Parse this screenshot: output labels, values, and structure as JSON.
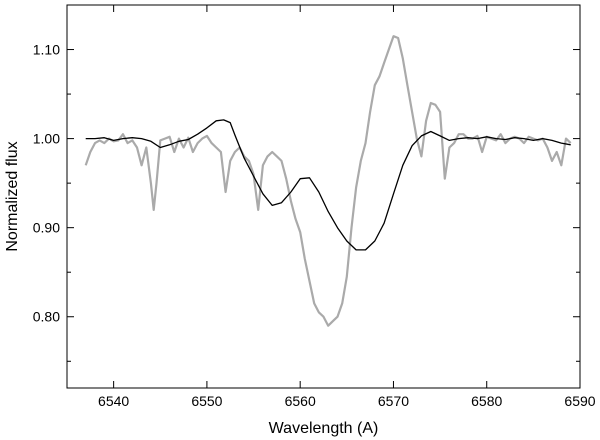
{
  "chart_data": {
    "type": "line",
    "title": "",
    "xlabel": "Wavelength (A)",
    "ylabel": "Normalized flux",
    "xlim": [
      6535,
      6590
    ],
    "ylim": [
      0.72,
      1.15
    ],
    "x_ticks": [
      6540,
      6550,
      6560,
      6570,
      6580,
      6590
    ],
    "x_tick_labels": [
      "6540",
      "6550",
      "6560",
      "6570",
      "6580",
      "6590"
    ],
    "y_ticks": [
      0.8,
      0.9,
      1.0,
      1.1
    ],
    "y_tick_labels": [
      "0.80",
      "0.90",
      "1.00",
      "1.10"
    ],
    "y_minor_ticks": [
      0.75,
      0.85,
      0.95,
      1.05
    ],
    "grid": false,
    "legend": "none",
    "series": [
      {
        "color": "#000000",
        "x": [
          6537.0,
          6538.0,
          6539.0,
          6540.0,
          6541.0,
          6542.0,
          6543.0,
          6544.0,
          6545.0,
          6546.0,
          6547.0,
          6548.0,
          6549.0,
          6550.0,
          6551.0,
          6551.8,
          6552.5,
          6553.0,
          6554.0,
          6555.0,
          6556.0,
          6557.0,
          6558.0,
          6559.0,
          6560.0,
          6561.0,
          6562.0,
          6563.0,
          6564.0,
          6565.0,
          6566.0,
          6567.0,
          6568.0,
          6569.0,
          6570.0,
          6571.0,
          6572.0,
          6573.0,
          6574.0,
          6575.0,
          6576.0,
          6577.0,
          6578.0,
          6579.0,
          6580.0,
          6581.0,
          6582.0,
          6583.0,
          6584.0,
          6585.0,
          6586.0,
          6587.0,
          6588.0,
          6589.0
        ],
        "y": [
          1.0,
          1.0,
          1.001,
          0.998,
          1.0,
          1.001,
          1.0,
          0.997,
          0.99,
          0.993,
          0.997,
          0.999,
          1.005,
          1.012,
          1.02,
          1.021,
          1.018,
          1.004,
          0.978,
          0.958,
          0.938,
          0.925,
          0.928,
          0.94,
          0.955,
          0.956,
          0.94,
          0.918,
          0.9,
          0.885,
          0.875,
          0.875,
          0.885,
          0.905,
          0.938,
          0.97,
          0.992,
          1.003,
          1.008,
          1.003,
          0.998,
          1.0,
          1.001,
          1.0,
          1.002,
          1.0,
          0.999,
          1.001,
          1.0,
          0.998,
          1.0,
          0.998,
          0.995,
          0.993
        ]
      },
      {
        "color": "#aaaaaa",
        "x": [
          6537.0,
          6537.5,
          6538.0,
          6538.5,
          6539.0,
          6539.5,
          6540.0,
          6540.5,
          6541.0,
          6541.5,
          6542.0,
          6542.5,
          6543.0,
          6543.5,
          6544.0,
          6544.3,
          6544.6,
          6545.0,
          6545.5,
          6546.0,
          6546.5,
          6547.0,
          6547.5,
          6548.0,
          6548.5,
          6549.0,
          6549.5,
          6550.0,
          6550.5,
          6551.0,
          6551.5,
          6552.0,
          6552.5,
          6553.0,
          6553.5,
          6554.0,
          6554.5,
          6555.0,
          6555.5,
          6556.0,
          6556.5,
          6557.0,
          6557.5,
          6558.0,
          6558.5,
          6559.0,
          6559.5,
          6560.0,
          6560.5,
          6561.0,
          6561.5,
          6562.0,
          6562.5,
          6563.0,
          6563.5,
          6564.0,
          6564.5,
          6565.0,
          6565.5,
          6566.0,
          6566.5,
          6567.0,
          6567.5,
          6568.0,
          6568.5,
          6569.0,
          6569.5,
          6570.0,
          6570.5,
          6571.0,
          6571.5,
          6572.0,
          6572.5,
          6573.0,
          6573.5,
          6574.0,
          6574.5,
          6575.0,
          6575.5,
          6576.0,
          6576.5,
          6577.0,
          6577.5,
          6578.0,
          6578.5,
          6579.0,
          6579.5,
          6580.0,
          6580.5,
          6581.0,
          6581.5,
          6582.0,
          6582.5,
          6583.0,
          6583.5,
          6584.0,
          6584.5,
          6585.0,
          6585.5,
          6586.0,
          6586.5,
          6587.0,
          6587.5,
          6588.0,
          6588.5,
          6589.0
        ],
        "y": [
          0.97,
          0.985,
          0.995,
          0.998,
          0.995,
          1.0,
          0.997,
          0.998,
          1.005,
          0.995,
          0.998,
          0.99,
          0.97,
          0.99,
          0.95,
          0.92,
          0.95,
          0.998,
          1.0,
          1.002,
          0.985,
          1.0,
          0.99,
          1.001,
          0.985,
          0.995,
          1.0,
          1.003,
          0.995,
          0.99,
          0.985,
          0.94,
          0.975,
          0.985,
          0.99,
          0.98,
          0.975,
          0.96,
          0.92,
          0.97,
          0.98,
          0.985,
          0.98,
          0.975,
          0.955,
          0.93,
          0.91,
          0.895,
          0.865,
          0.84,
          0.815,
          0.805,
          0.8,
          0.79,
          0.795,
          0.8,
          0.815,
          0.845,
          0.9,
          0.945,
          0.975,
          0.995,
          1.03,
          1.06,
          1.07,
          1.085,
          1.1,
          1.115,
          1.113,
          1.09,
          1.06,
          1.03,
          1.0,
          0.98,
          1.02,
          1.04,
          1.038,
          1.03,
          0.955,
          0.99,
          0.995,
          1.005,
          1.005,
          1.0,
          1.0,
          1.003,
          0.985,
          1.002,
          1.0,
          0.998,
          1.005,
          0.995,
          1.0,
          1.002,
          1.0,
          0.995,
          1.002,
          1.0,
          0.998,
          1.0,
          0.99,
          0.975,
          0.985,
          0.97,
          1.0,
          0.995
        ]
      }
    ]
  }
}
